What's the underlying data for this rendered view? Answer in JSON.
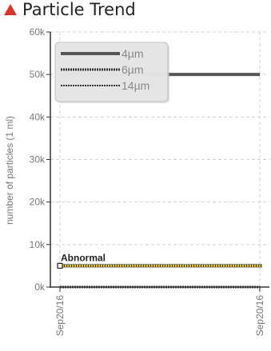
{
  "header": {
    "title": "Particle Trend",
    "icon": "warning-triangle-icon",
    "icon_color": "#d9342b"
  },
  "chart_data": {
    "type": "line",
    "title": "Particle Trend",
    "xlabel": "",
    "ylabel": "number of particles (1 ml)",
    "ylim": [
      0,
      60000
    ],
    "yticks": [
      0,
      10000,
      20000,
      30000,
      40000,
      50000,
      60000
    ],
    "ytick_labels": [
      "0k",
      "10k",
      "20k",
      "30k",
      "40k",
      "50k",
      "60k"
    ],
    "x_tick_labels": [
      "Sep20/16",
      "Sep20/16"
    ],
    "grid": true,
    "legend_position": "top-left",
    "series": [
      {
        "name": "4µm",
        "values": [
          50000,
          50000
        ],
        "style": "solid",
        "color": "#555555"
      },
      {
        "name": "6µm",
        "values": [
          0,
          0
        ],
        "style": "dotted-thick",
        "color": "#333333"
      },
      {
        "name": "14µm",
        "values": [
          0,
          0
        ],
        "style": "dotted",
        "color": "#333333"
      }
    ],
    "threshold": {
      "label": "Abnormal",
      "value": 5000,
      "color": "#e8c21a"
    }
  }
}
